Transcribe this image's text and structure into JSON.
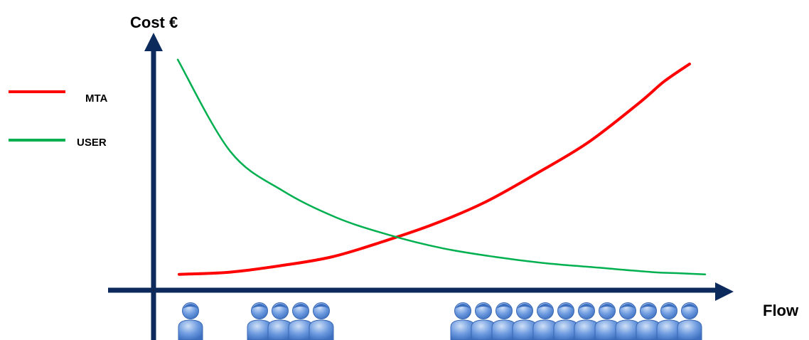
{
  "chart_data": {
    "type": "line",
    "title": "",
    "ylabel": "Cost €",
    "xlabel": "Flow",
    "grid": false,
    "legend_position": "left",
    "x": [
      0,
      0.1,
      0.2,
      0.3,
      0.4,
      0.5,
      0.6,
      0.7,
      0.8,
      0.9,
      0.95,
      1.0
    ],
    "series": [
      {
        "name": "MTA",
        "color": "#ff0000",
        "values": [
          0.04,
          0.05,
          0.08,
          0.12,
          0.19,
          0.27,
          0.37,
          0.5,
          0.64,
          0.82,
          0.92,
          1.0
        ]
      },
      {
        "name": "USER",
        "color": "#00b050",
        "values": [
          1.02,
          0.6,
          0.42,
          0.3,
          0.22,
          0.16,
          0.12,
          0.09,
          0.07,
          0.05,
          0.045,
          0.04
        ]
      }
    ],
    "axis_color": "#0c2a5c",
    "person_icon_color": "#5b8fd6",
    "people_groups": [
      1,
      4,
      12
    ]
  }
}
